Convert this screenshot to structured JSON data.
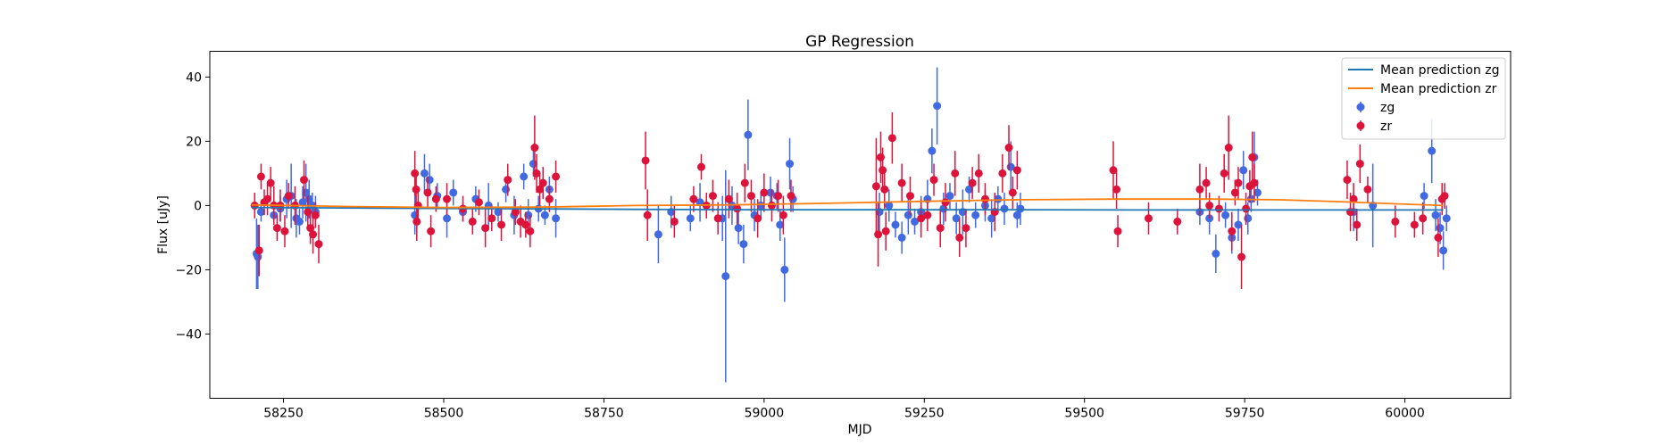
{
  "chart_data": {
    "type": "scatter",
    "title": "GP Regression",
    "xlabel": "MJD",
    "ylabel": "Flux [uJy]",
    "xlim": [
      58135,
      60165
    ],
    "ylim": [
      -60,
      48
    ],
    "xticks": [
      58250,
      58500,
      58750,
      59000,
      59250,
      59500,
      59750,
      60000
    ],
    "yticks": [
      -40,
      -20,
      0,
      20,
      40
    ],
    "grid": false,
    "legend_position": "top-right",
    "lines": [
      {
        "name": "Mean prediction zg",
        "color": "#1f77b4",
        "x": [
          58200,
          58400,
          58600,
          58800,
          59000,
          59200,
          59400,
          59600,
          59800,
          60000,
          60060
        ],
        "y": [
          -0.6,
          -0.8,
          -1.0,
          -1.2,
          -1.3,
          -1.3,
          -1.3,
          -1.4,
          -1.4,
          -1.4,
          -1.4
        ]
      },
      {
        "name": "Mean prediction zr",
        "color": "#ff7f0e",
        "x": [
          58200,
          58350,
          58500,
          58650,
          58800,
          58950,
          59100,
          59250,
          59400,
          59550,
          59700,
          59800,
          59900,
          60000,
          60060
        ],
        "y": [
          0.2,
          -0.3,
          -0.6,
          -0.5,
          0.0,
          0.2,
          0.7,
          1.3,
          1.8,
          2.0,
          2.0,
          1.8,
          1.2,
          0.4,
          0.0
        ]
      }
    ],
    "series": [
      {
        "name": "zg",
        "color": "#4169e1",
        "points": [
          [
            58208,
            -15,
            11
          ],
          [
            58210,
            -16,
            10
          ],
          [
            58215,
            -2,
            3
          ],
          [
            58235,
            -3,
            2
          ],
          [
            58245,
            -1,
            4
          ],
          [
            58255,
            2,
            6
          ],
          [
            58262,
            3,
            10
          ],
          [
            58270,
            -4,
            6
          ],
          [
            58275,
            -5,
            4
          ],
          [
            58280,
            1,
            5
          ],
          [
            58285,
            4,
            9
          ],
          [
            58290,
            2,
            6
          ],
          [
            58295,
            0,
            4
          ],
          [
            58300,
            -2,
            5
          ],
          [
            58455,
            -3,
            6
          ],
          [
            58470,
            10,
            6
          ],
          [
            58478,
            8,
            5
          ],
          [
            58490,
            3,
            4
          ],
          [
            58505,
            -4,
            6
          ],
          [
            58515,
            4,
            4
          ],
          [
            58530,
            -2,
            3
          ],
          [
            58550,
            2,
            4
          ],
          [
            58570,
            0,
            7
          ],
          [
            58585,
            -2,
            3
          ],
          [
            58597,
            5,
            4
          ],
          [
            58610,
            -3,
            6
          ],
          [
            58625,
            9,
            4
          ],
          [
            58632,
            -3,
            5
          ],
          [
            58640,
            13,
            4
          ],
          [
            58648,
            -1,
            4
          ],
          [
            58658,
            -3,
            3
          ],
          [
            58665,
            5,
            4
          ],
          [
            58675,
            -4,
            6
          ],
          [
            58835,
            -9,
            9
          ],
          [
            58855,
            -2,
            5
          ],
          [
            58885,
            -4,
            4
          ],
          [
            58900,
            1,
            6
          ],
          [
            58935,
            -4,
            7
          ],
          [
            58940,
            -22,
            33
          ],
          [
            58950,
            0,
            6
          ],
          [
            58960,
            -7,
            5
          ],
          [
            58968,
            -12,
            6
          ],
          [
            58975,
            22,
            11
          ],
          [
            58985,
            -3,
            5
          ],
          [
            58995,
            0,
            4
          ],
          [
            59010,
            4,
            5
          ],
          [
            59020,
            3,
            4
          ],
          [
            59025,
            -6,
            5
          ],
          [
            59032,
            -20,
            10
          ],
          [
            59040,
            13,
            8
          ],
          [
            59045,
            2,
            4
          ],
          [
            59180,
            -2,
            6
          ],
          [
            59195,
            0,
            5
          ],
          [
            59205,
            -6,
            4
          ],
          [
            59215,
            -10,
            5
          ],
          [
            59225,
            -3,
            6
          ],
          [
            59235,
            -5,
            4
          ],
          [
            59245,
            -2,
            5
          ],
          [
            59255,
            2,
            6
          ],
          [
            59262,
            17,
            7
          ],
          [
            59270,
            31,
            12
          ],
          [
            59280,
            -1,
            5
          ],
          [
            59290,
            3,
            4
          ],
          [
            59300,
            -4,
            5
          ],
          [
            59310,
            -2,
            7
          ],
          [
            59320,
            5,
            4
          ],
          [
            59330,
            -3,
            4
          ],
          [
            59345,
            0,
            5
          ],
          [
            59355,
            -4,
            6
          ],
          [
            59365,
            2,
            4
          ],
          [
            59375,
            -1,
            5
          ],
          [
            59385,
            12,
            8
          ],
          [
            59395,
            -3,
            4
          ],
          [
            59400,
            -1,
            5
          ],
          [
            59680,
            -2,
            4
          ],
          [
            59695,
            -4,
            5
          ],
          [
            59705,
            -15,
            6
          ],
          [
            59720,
            -3,
            4
          ],
          [
            59730,
            -10,
            5
          ],
          [
            59740,
            -6,
            5
          ],
          [
            59748,
            11,
            6
          ],
          [
            59755,
            -4,
            5
          ],
          [
            59760,
            2,
            4
          ],
          [
            59765,
            15,
            8
          ],
          [
            59770,
            4,
            4
          ],
          [
            59920,
            -2,
            6
          ],
          [
            59950,
            0,
            13
          ],
          [
            60030,
            3,
            4
          ],
          [
            60042,
            17,
            10
          ],
          [
            60048,
            -3,
            5
          ],
          [
            60055,
            -7,
            5
          ],
          [
            60060,
            -14,
            6
          ],
          [
            60065,
            -4,
            4
          ]
        ]
      },
      {
        "name": "zr",
        "color": "#dc143c",
        "points": [
          [
            58205,
            0,
            4
          ],
          [
            58212,
            -14,
            8
          ],
          [
            58215,
            9,
            4
          ],
          [
            58220,
            1,
            4
          ],
          [
            58225,
            2,
            5
          ],
          [
            58230,
            7,
            5
          ],
          [
            58235,
            0,
            6
          ],
          [
            58240,
            -7,
            4
          ],
          [
            58245,
            0,
            5
          ],
          [
            58252,
            -8,
            5
          ],
          [
            58258,
            3,
            4
          ],
          [
            58268,
            0,
            6
          ],
          [
            58282,
            8,
            6
          ],
          [
            58288,
            -2,
            5
          ],
          [
            58292,
            -7,
            5
          ],
          [
            58296,
            -9,
            6
          ],
          [
            58300,
            -3,
            4
          ],
          [
            58305,
            -12,
            6
          ],
          [
            58455,
            10,
            7
          ],
          [
            58457,
            5,
            5
          ],
          [
            58458,
            -5,
            6
          ],
          [
            58460,
            0,
            4
          ],
          [
            58475,
            4,
            5
          ],
          [
            58480,
            -8,
            5
          ],
          [
            58488,
            2,
            4
          ],
          [
            58505,
            2,
            5
          ],
          [
            58530,
            -1,
            4
          ],
          [
            58545,
            -5,
            4
          ],
          [
            58555,
            1,
            4
          ],
          [
            58565,
            -7,
            6
          ],
          [
            58575,
            -4,
            4
          ],
          [
            58590,
            -6,
            5
          ],
          [
            58600,
            8,
            5
          ],
          [
            58612,
            -2,
            4
          ],
          [
            58620,
            -5,
            5
          ],
          [
            58628,
            -6,
            4
          ],
          [
            58635,
            -8,
            5
          ],
          [
            58642,
            18,
            10
          ],
          [
            58645,
            10,
            6
          ],
          [
            58650,
            5,
            5
          ],
          [
            58655,
            7,
            5
          ],
          [
            58665,
            2,
            4
          ],
          [
            58675,
            9,
            5
          ],
          [
            58815,
            14,
            9
          ],
          [
            58818,
            -3,
            8
          ],
          [
            58860,
            -5,
            5
          ],
          [
            58890,
            2,
            4
          ],
          [
            58902,
            12,
            4
          ],
          [
            58910,
            0,
            4
          ],
          [
            58920,
            3,
            5
          ],
          [
            58928,
            -4,
            5
          ],
          [
            58945,
            2,
            6
          ],
          [
            58958,
            -1,
            5
          ],
          [
            58970,
            7,
            6
          ],
          [
            58980,
            3,
            5
          ],
          [
            58990,
            -4,
            6
          ],
          [
            59000,
            4,
            6
          ],
          [
            59012,
            0,
            5
          ],
          [
            59022,
            3,
            5
          ],
          [
            59030,
            -3,
            6
          ],
          [
            59042,
            3,
            5
          ],
          [
            59175,
            6,
            15
          ],
          [
            59178,
            -9,
            10
          ],
          [
            59182,
            15,
            8
          ],
          [
            59185,
            11,
            7
          ],
          [
            59188,
            5,
            6
          ],
          [
            59190,
            -8,
            6
          ],
          [
            59200,
            21,
            8
          ],
          [
            59215,
            7,
            6
          ],
          [
            59228,
            3,
            6
          ],
          [
            59245,
            -4,
            6
          ],
          [
            59255,
            -3,
            5
          ],
          [
            59265,
            8,
            5
          ],
          [
            59275,
            -7,
            6
          ],
          [
            59283,
            1,
            6
          ],
          [
            59298,
            10,
            7
          ],
          [
            59305,
            -10,
            6
          ],
          [
            59315,
            -7,
            6
          ],
          [
            59325,
            7,
            5
          ],
          [
            59335,
            10,
            6
          ],
          [
            59345,
            2,
            5
          ],
          [
            59360,
            -2,
            6
          ],
          [
            59372,
            10,
            6
          ],
          [
            59382,
            18,
            7
          ],
          [
            59388,
            4,
            5
          ],
          [
            59395,
            11,
            6
          ],
          [
            59545,
            11,
            9
          ],
          [
            59550,
            5,
            6
          ],
          [
            59552,
            -8,
            5
          ],
          [
            59600,
            -4,
            5
          ],
          [
            59645,
            -5,
            4
          ],
          [
            59680,
            5,
            8
          ],
          [
            59690,
            7,
            5
          ],
          [
            59695,
            0,
            4
          ],
          [
            59710,
            -1,
            4
          ],
          [
            59718,
            10,
            6
          ],
          [
            59725,
            18,
            10
          ],
          [
            59730,
            -8,
            6
          ],
          [
            59735,
            4,
            4
          ],
          [
            59740,
            7,
            5
          ],
          [
            59745,
            -16,
            10
          ],
          [
            59752,
            -1,
            5
          ],
          [
            59758,
            6,
            5
          ],
          [
            59762,
            15,
            8
          ],
          [
            59765,
            7,
            6
          ],
          [
            59910,
            8,
            6
          ],
          [
            59915,
            -2,
            6
          ],
          [
            59920,
            2,
            5
          ],
          [
            59925,
            -6,
            5
          ],
          [
            59930,
            13,
            6
          ],
          [
            59942,
            5,
            4
          ],
          [
            59985,
            -5,
            5
          ],
          [
            60015,
            -6,
            4
          ],
          [
            60028,
            -4,
            5
          ],
          [
            60052,
            -10,
            6
          ],
          [
            60058,
            2,
            5
          ],
          [
            60062,
            3,
            4
          ]
        ]
      }
    ]
  }
}
